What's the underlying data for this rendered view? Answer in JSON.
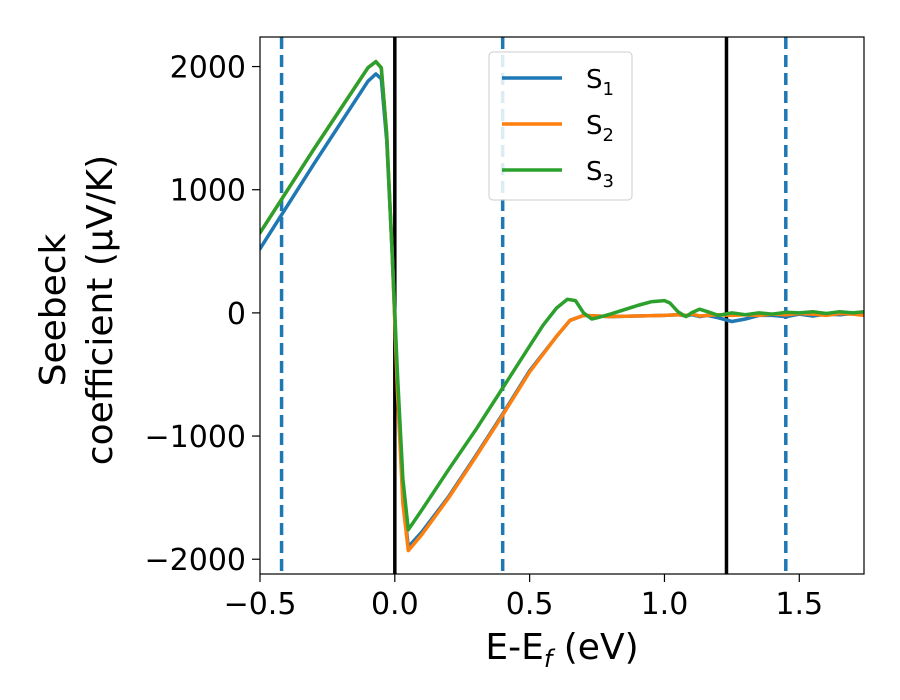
{
  "chart_data": {
    "type": "line",
    "xlabel": "E-Ef (eV)",
    "xlabel_main": "E-E",
    "xlabel_sub": "f",
    "xlabel_unit": " (eV)",
    "ylabel_line1": "Seebeck",
    "ylabel_line2": "coefficient  (μV/K)",
    "xlim": [
      -0.5,
      1.74
    ],
    "ylim": [
      -2120,
      2240
    ],
    "x_ticks": [
      -0.5,
      0.0,
      0.5,
      1.0,
      1.5
    ],
    "x_tick_labels": [
      "−0.5",
      "0.0",
      "0.5",
      "1.0",
      "1.5"
    ],
    "y_ticks": [
      2000,
      1000,
      0,
      -1000,
      -2000
    ],
    "y_tick_labels": [
      "2000",
      "1000",
      "0",
      "−1000",
      "−2000"
    ],
    "grid": false,
    "legend_placement": "upper-center",
    "vertical_lines": [
      {
        "x": -0.42,
        "style": "dashed",
        "color": "#1f77b4"
      },
      {
        "x": 0.0,
        "style": "solid",
        "color": "#000000"
      },
      {
        "x": 0.4,
        "style": "dashed",
        "color": "#1f77b4"
      },
      {
        "x": 1.23,
        "style": "solid",
        "color": "#000000"
      },
      {
        "x": 1.45,
        "style": "dashed",
        "color": "#1f77b4"
      }
    ],
    "series": [
      {
        "name": "S",
        "subscript": "1",
        "color": "#1f77b4",
        "x": [
          -0.5,
          -0.3,
          -0.1,
          -0.07,
          -0.05,
          -0.03,
          -0.01,
          0.01,
          0.03,
          0.05,
          0.1,
          0.2,
          0.3,
          0.4,
          0.5,
          0.6,
          0.65,
          0.7,
          0.75,
          0.8,
          0.9,
          1.0,
          1.05,
          1.08,
          1.1,
          1.13,
          1.16,
          1.2,
          1.25,
          1.3,
          1.35,
          1.4,
          1.45,
          1.5,
          1.55,
          1.6,
          1.65,
          1.7,
          1.74
        ],
        "y": [
          520,
          1210,
          1880,
          1940,
          1900,
          1400,
          500,
          -600,
          -1500,
          -1900,
          -1780,
          -1490,
          -1160,
          -820,
          -470,
          -190,
          -60,
          -20,
          -25,
          -30,
          -25,
          -20,
          -15,
          -25,
          -15,
          -30,
          -20,
          -40,
          -70,
          -50,
          -20,
          -20,
          -30,
          -10,
          -25,
          -10,
          -15,
          -5,
          -15
        ]
      },
      {
        "name": "S",
        "subscript": "2",
        "color": "#ff7f0e",
        "x": [
          -0.5,
          -0.3,
          -0.1,
          -0.07,
          -0.05,
          -0.03,
          -0.01,
          0.01,
          0.03,
          0.05,
          0.1,
          0.2,
          0.3,
          0.4,
          0.5,
          0.6,
          0.65,
          0.7,
          0.75,
          0.8,
          0.9,
          1.0,
          1.05,
          1.08,
          1.1,
          1.13,
          1.16,
          1.2,
          1.25,
          1.3,
          1.35,
          1.4,
          1.45,
          1.5,
          1.55,
          1.6,
          1.65,
          1.7,
          1.74
        ],
        "y": [
          650,
          1330,
          1990,
          2040,
          1990,
          1450,
          500,
          -650,
          -1550,
          -1930,
          -1800,
          -1500,
          -1170,
          -830,
          -480,
          -190,
          -60,
          -20,
          -25,
          -30,
          -25,
          -20,
          -15,
          -20,
          -10,
          -25,
          -20,
          -15,
          -20,
          -15,
          -20,
          -10,
          -15,
          -5,
          -10,
          -20,
          -5,
          -10,
          -20
        ]
      },
      {
        "name": "S",
        "subscript": "3",
        "color": "#2ca02c",
        "x": [
          -0.5,
          -0.3,
          -0.1,
          -0.07,
          -0.05,
          -0.03,
          -0.01,
          0.01,
          0.03,
          0.05,
          0.1,
          0.2,
          0.3,
          0.4,
          0.5,
          0.55,
          0.6,
          0.64,
          0.67,
          0.7,
          0.73,
          0.75,
          0.8,
          0.9,
          0.95,
          1.0,
          1.02,
          1.05,
          1.08,
          1.1,
          1.13,
          1.16,
          1.2,
          1.25,
          1.3,
          1.35,
          1.4,
          1.45,
          1.5,
          1.55,
          1.6,
          1.65,
          1.7,
          1.74
        ],
        "y": [
          650,
          1330,
          1990,
          2040,
          1990,
          1450,
          500,
          -500,
          -1350,
          -1760,
          -1600,
          -1270,
          -950,
          -610,
          -270,
          -100,
          40,
          110,
          100,
          0,
          -50,
          -40,
          -10,
          60,
          90,
          100,
          80,
          10,
          -30,
          0,
          30,
          10,
          -20,
          0,
          -15,
          0,
          -10,
          5,
          0,
          10,
          -5,
          10,
          0,
          10
        ]
      }
    ]
  }
}
